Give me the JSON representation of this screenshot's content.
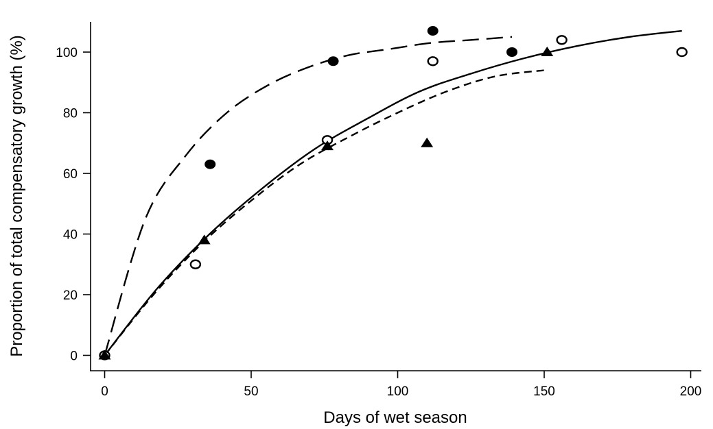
{
  "chart_data": {
    "type": "scatter",
    "title": "",
    "xlabel": "Days of wet season",
    "ylabel": "Proportion of total compensatory growth (%)",
    "xlim": [
      -5,
      200
    ],
    "ylim": [
      -5,
      110
    ],
    "x_ticks": [
      0,
      50,
      100,
      150,
      200
    ],
    "y_ticks": [
      0,
      20,
      40,
      60,
      80,
      100
    ],
    "grid": false,
    "legend": "none",
    "series": [
      {
        "marker": "filled-circle",
        "points": [
          {
            "x": 0,
            "y": 0
          },
          {
            "x": 36,
            "y": 63
          },
          {
            "x": 78,
            "y": 97
          },
          {
            "x": 112,
            "y": 107
          },
          {
            "x": 139,
            "y": 100
          }
        ],
        "fit": {
          "line": "long-dash",
          "x_range": [
            0,
            139
          ],
          "y_values": [
            0,
            45,
            66,
            80,
            89,
            95,
            99,
            101,
            103,
            104,
            105
          ]
        }
      },
      {
        "marker": "open-circle",
        "points": [
          {
            "x": 0,
            "y": 0
          },
          {
            "x": 31,
            "y": 30
          },
          {
            "x": 76,
            "y": 71
          },
          {
            "x": 112,
            "y": 97
          },
          {
            "x": 156,
            "y": 104
          },
          {
            "x": 197,
            "y": 100
          }
        ],
        "fit": {
          "line": "solid",
          "x_range": [
            0,
            197
          ],
          "y_values": [
            0,
            22,
            40,
            55,
            68,
            78,
            87,
            93,
            98,
            102,
            105,
            107
          ]
        }
      },
      {
        "marker": "filled-triangle",
        "points": [
          {
            "x": 0,
            "y": 0
          },
          {
            "x": 34,
            "y": 38
          },
          {
            "x": 76,
            "y": 69
          },
          {
            "x": 110,
            "y": 70
          },
          {
            "x": 151,
            "y": 100
          }
        ],
        "fit": {
          "line": "short-dash",
          "x_range": [
            0,
            150
          ],
          "y_values": [
            0,
            20,
            37,
            51,
            63,
            72,
            80,
            87,
            92,
            94
          ]
        }
      }
    ]
  }
}
